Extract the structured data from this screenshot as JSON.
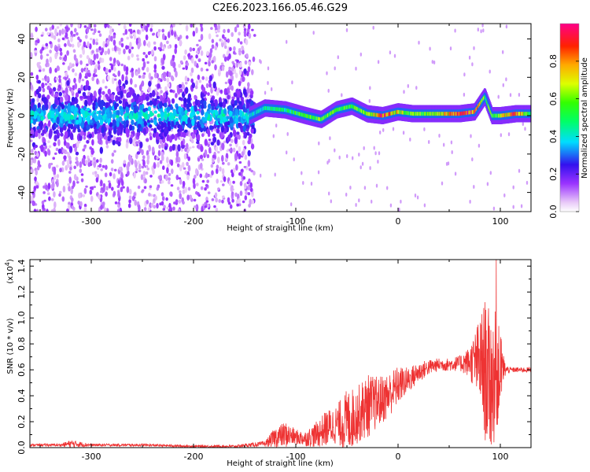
{
  "title": "C2E6.2023.166.05.46.G29",
  "colors": {
    "snr_line": "#ee3333",
    "axis": "#000000"
  },
  "chart_data": [
    {
      "type": "heatmap",
      "xlabel": "Height of straight line (km)",
      "ylabel": "Frequency (Hz)",
      "xlim": [
        -360,
        130
      ],
      "ylim": [
        -50,
        48
      ],
      "xticks": [
        -300,
        -200,
        -100,
        0,
        100
      ],
      "yticks": [
        -40,
        -20,
        0,
        20,
        40
      ],
      "xtick_labels": [
        "-300",
        "-200",
        "-100",
        "0",
        "100"
      ],
      "ytick_labels": [
        "-40",
        "-20",
        "0",
        "20",
        "40"
      ],
      "colorbar": {
        "label": "Normalized spectral amplitude",
        "range": [
          0,
          1
        ],
        "ticks": [
          0.0,
          0.2,
          0.4,
          0.6,
          0.8
        ],
        "tick_labels": [
          "0.0",
          "0.2",
          "0.4",
          "0.6",
          "0.8"
        ],
        "colormap": "rainbow"
      },
      "ridge": [
        {
          "x": -360,
          "f": 0,
          "a": 0.3
        },
        {
          "x": -300,
          "f": 0,
          "a": 0.3
        },
        {
          "x": -200,
          "f": 0,
          "a": 0.3
        },
        {
          "x": -145,
          "f": 0,
          "a": 0.35
        },
        {
          "x": -130,
          "f": 4,
          "a": 0.45
        },
        {
          "x": -110,
          "f": 3,
          "a": 0.5
        },
        {
          "x": -90,
          "f": 0,
          "a": 0.55
        },
        {
          "x": -75,
          "f": -2,
          "a": 0.6
        },
        {
          "x": -60,
          "f": 3,
          "a": 0.55
        },
        {
          "x": -45,
          "f": 5,
          "a": 0.55
        },
        {
          "x": -30,
          "f": 1,
          "a": 0.6
        },
        {
          "x": -15,
          "f": 0,
          "a": 0.9
        },
        {
          "x": 0,
          "f": 2,
          "a": 0.7
        },
        {
          "x": 15,
          "f": 1,
          "a": 0.6
        },
        {
          "x": 40,
          "f": 1,
          "a": 0.65
        },
        {
          "x": 60,
          "f": 1,
          "a": 0.9
        },
        {
          "x": 75,
          "f": 2,
          "a": 0.9
        },
        {
          "x": 85,
          "f": 10,
          "a": 0.6
        },
        {
          "x": 92,
          "f": 0,
          "a": 0.55
        },
        {
          "x": 100,
          "f": 0,
          "a": 0.6
        },
        {
          "x": 115,
          "f": 1,
          "a": 0.9
        },
        {
          "x": 130,
          "f": 1,
          "a": 0.5
        }
      ]
    },
    {
      "type": "line",
      "xlabel": "Height of straight line (km)",
      "ylabel": "SNR (10 * v/v)",
      "y_multiplier": "(x10",
      "y_multiplier_exp": "4",
      "y_multiplier_close": ")",
      "xlim": [
        -360,
        130
      ],
      "ylim": [
        0,
        1.45
      ],
      "xticks": [
        -300,
        -200,
        -100,
        0,
        100
      ],
      "yticks": [
        0.0,
        0.2,
        0.4,
        0.6,
        0.8,
        1.0,
        1.2,
        1.4
      ],
      "xtick_labels": [
        "-300",
        "-200",
        "-100",
        "0",
        "100"
      ],
      "ytick_labels": [
        "0.0",
        "0.2",
        "0.4",
        "0.6",
        "0.8",
        "1.0",
        "1.2",
        "1.4"
      ],
      "series": [
        {
          "envelope_x": [
            -360,
            -330,
            -320,
            -300,
            -250,
            -200,
            -160,
            -130,
            -120,
            -110,
            -100,
            -90,
            -80,
            -70,
            -60,
            -50,
            -40,
            -30,
            -20,
            -10,
            0,
            10,
            20,
            30,
            40,
            50,
            60,
            70,
            80,
            85,
            90,
            95,
            100,
            105,
            110,
            130
          ],
          "envelope_mid": [
            0.02,
            0.02,
            0.03,
            0.02,
            0.02,
            0.01,
            0.01,
            0.03,
            0.08,
            0.1,
            0.08,
            0.07,
            0.1,
            0.15,
            0.18,
            0.2,
            0.25,
            0.32,
            0.35,
            0.4,
            0.48,
            0.52,
            0.58,
            0.62,
            0.64,
            0.64,
            0.65,
            0.66,
            0.66,
            0.6,
            0.5,
            0.55,
            0.6,
            0.6,
            0.6,
            0.6
          ],
          "envelope_amp": [
            0.01,
            0.01,
            0.03,
            0.01,
            0.01,
            0.01,
            0.01,
            0.02,
            0.08,
            0.1,
            0.06,
            0.06,
            0.1,
            0.14,
            0.15,
            0.25,
            0.22,
            0.25,
            0.2,
            0.18,
            0.15,
            0.1,
            0.08,
            0.06,
            0.05,
            0.05,
            0.06,
            0.12,
            0.35,
            0.55,
            0.55,
            0.5,
            0.3,
            0.04,
            0.02,
            0.02
          ]
        }
      ]
    }
  ]
}
